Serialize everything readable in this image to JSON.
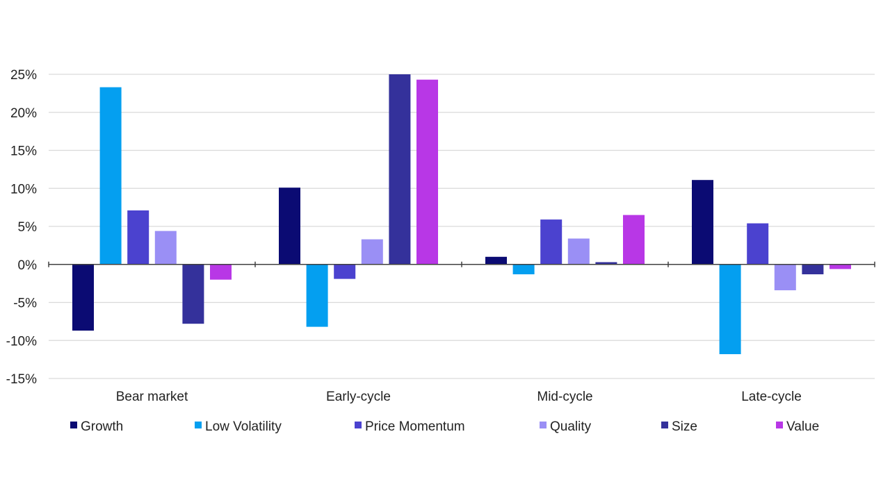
{
  "chart_data": {
    "type": "bar",
    "title": "",
    "xlabel": "",
    "ylabel": "",
    "ylim": [
      -15,
      25
    ],
    "yticks": [
      25,
      20,
      15,
      10,
      5,
      0,
      -5,
      -10,
      -15
    ],
    "ytick_labels": [
      "25%",
      "20%",
      "15%",
      "10%",
      "5%",
      "0%",
      "-5%",
      "-10%",
      "-15%"
    ],
    "categories": [
      "Bear market",
      "Early-cycle",
      "Mid-cycle",
      "Late-cycle"
    ],
    "grid": true,
    "legend_position": "bottom",
    "series": [
      {
        "name": "Growth",
        "color": "#0b0b73",
        "values": [
          -8.7,
          10.1,
          1.0,
          11.1
        ]
      },
      {
        "name": "Low Volatility",
        "color": "#049ff0",
        "values": [
          23.3,
          -8.2,
          -1.3,
          -11.8
        ]
      },
      {
        "name": "Price Momentum",
        "color": "#4b42cf",
        "values": [
          7.1,
          -1.9,
          5.9,
          5.4
        ]
      },
      {
        "name": "Quality",
        "color": "#9a8ff5",
        "values": [
          4.4,
          3.3,
          3.4,
          -3.4
        ]
      },
      {
        "name": "Size",
        "color": "#34319b",
        "values": [
          -7.8,
          25.0,
          0.3,
          -1.3
        ]
      },
      {
        "name": "Value",
        "color": "#b837e6",
        "values": [
          -2.0,
          24.3,
          6.5,
          -0.6
        ]
      }
    ]
  }
}
